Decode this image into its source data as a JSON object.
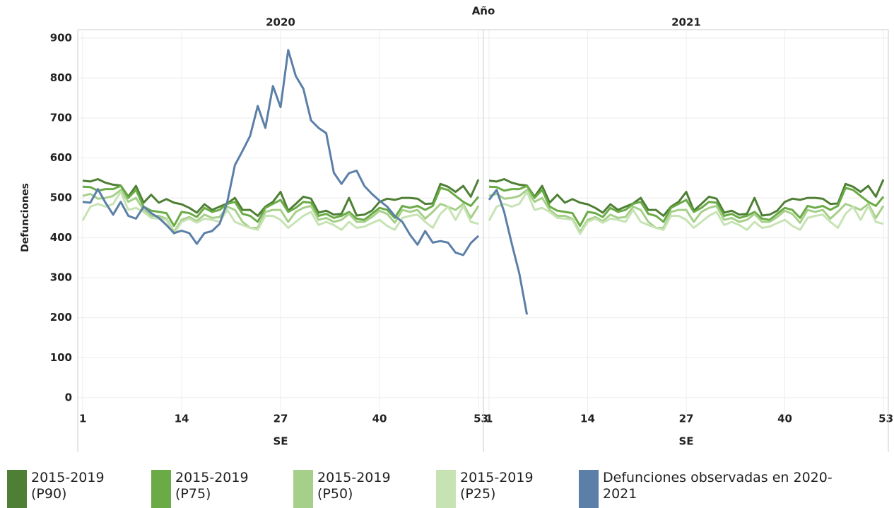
{
  "facet_label": "Año",
  "y_label": "Defunciones",
  "chart_data": [
    {
      "type": "line",
      "title": "2020",
      "x_label": "SE",
      "x": [
        1,
        2,
        3,
        4,
        5,
        6,
        7,
        8,
        9,
        10,
        11,
        12,
        13,
        14,
        15,
        16,
        17,
        18,
        19,
        20,
        21,
        22,
        23,
        24,
        25,
        26,
        27,
        28,
        29,
        30,
        31,
        32,
        33,
        34,
        35,
        36,
        37,
        38,
        39,
        40,
        41,
        42,
        43,
        44,
        45,
        46,
        47,
        48,
        49,
        50,
        51,
        52,
        53
      ],
      "xlim": [
        0.35,
        53.65
      ],
      "xticks": [
        1,
        14,
        27,
        40,
        53
      ],
      "ylim": [
        -48,
        921
      ],
      "yticks": [
        0,
        100,
        200,
        300,
        400,
        500,
        600,
        700,
        800,
        900
      ],
      "grid": true,
      "series": [
        {
          "name": "2015-2019 (P90)",
          "color": "#4e7f35",
          "values": [
            543,
            541,
            547,
            538,
            533,
            531,
            503,
            530,
            488,
            508,
            488,
            497,
            488,
            484,
            475,
            463,
            484,
            470,
            478,
            486,
            500,
            470,
            470,
            455,
            478,
            490,
            515,
            468,
            485,
            503,
            498,
            463,
            468,
            458,
            460,
            500,
            456,
            458,
            468,
            490,
            498,
            495,
            500,
            500,
            498,
            485,
            486,
            535,
            528,
            515,
            530,
            503,
            546
          ]
        },
        {
          "name": "2015-2019 (P75)",
          "color": "#6aab46",
          "values": [
            528,
            527,
            518,
            522,
            522,
            530,
            500,
            520,
            478,
            468,
            465,
            462,
            430,
            465,
            462,
            452,
            475,
            465,
            470,
            485,
            490,
            460,
            455,
            440,
            475,
            485,
            495,
            465,
            475,
            490,
            488,
            455,
            460,
            450,
            455,
            465,
            448,
            445,
            460,
            475,
            470,
            450,
            480,
            475,
            480,
            470,
            480,
            525,
            520,
            505,
            490,
            480,
            503
          ]
        },
        {
          "name": "2015-2019 (P50)",
          "color": "#a6d08a",
          "values": [
            505,
            510,
            498,
            500,
            505,
            520,
            490,
            500,
            470,
            455,
            455,
            448,
            415,
            445,
            452,
            442,
            458,
            450,
            452,
            478,
            470,
            440,
            425,
            425,
            465,
            470,
            470,
            440,
            465,
            475,
            480,
            445,
            450,
            440,
            445,
            460,
            440,
            440,
            452,
            468,
            460,
            438,
            470,
            465,
            470,
            448,
            465,
            485,
            478,
            470,
            485,
            450,
            480
          ]
        },
        {
          "name": "2015-2019 (P25)",
          "color": "#c7e3b4",
          "values": [
            443,
            478,
            485,
            478,
            485,
            515,
            470,
            475,
            465,
            450,
            448,
            445,
            410,
            440,
            448,
            438,
            448,
            445,
            440,
            470,
            440,
            432,
            425,
            420,
            455,
            455,
            445,
            425,
            440,
            455,
            465,
            432,
            440,
            432,
            420,
            440,
            425,
            428,
            437,
            445,
            430,
            420,
            450,
            455,
            458,
            440,
            425,
            460,
            478,
            445,
            480,
            440,
            435
          ]
        },
        {
          "name": "Defunciones observadas en 2020-2021",
          "color": "#5b7fa8",
          "values": [
            490,
            488,
            522,
            488,
            458,
            490,
            455,
            448,
            478,
            462,
            450,
            432,
            412,
            418,
            412,
            385,
            412,
            417,
            435,
            490,
            582,
            618,
            655,
            730,
            675,
            780,
            727,
            870,
            805,
            773,
            694,
            675,
            662,
            563,
            535,
            562,
            568,
            530,
            510,
            493,
            478,
            455,
            440,
            408,
            383,
            417,
            388,
            392,
            388,
            363,
            357,
            387,
            405
          ]
        }
      ]
    },
    {
      "type": "line",
      "title": "2021",
      "x_label": "SE",
      "x": [
        1,
        2,
        3,
        4,
        5,
        6,
        7,
        8,
        9,
        10,
        11,
        12,
        13,
        14,
        15,
        16,
        17,
        18,
        19,
        20,
        21,
        22,
        23,
        24,
        25,
        26,
        27,
        28,
        29,
        30,
        31,
        32,
        33,
        34,
        35,
        36,
        37,
        38,
        39,
        40,
        41,
        42,
        43,
        44,
        45,
        46,
        47,
        48,
        49,
        50,
        51,
        52,
        53
      ],
      "xlim": [
        0.35,
        53.65
      ],
      "xticks": [
        1,
        14,
        27,
        40,
        53
      ],
      "ylim": [
        -48,
        921
      ],
      "yticks": [
        0,
        100,
        200,
        300,
        400,
        500,
        600,
        700,
        800,
        900
      ],
      "grid": true,
      "series": [
        {
          "name": "2015-2019 (P90)",
          "color": "#4e7f35",
          "values": [
            543,
            541,
            547,
            538,
            533,
            531,
            503,
            530,
            488,
            508,
            488,
            497,
            488,
            484,
            475,
            463,
            484,
            470,
            478,
            486,
            500,
            470,
            470,
            455,
            478,
            490,
            515,
            468,
            485,
            503,
            498,
            463,
            468,
            458,
            460,
            500,
            456,
            458,
            468,
            490,
            498,
            495,
            500,
            500,
            498,
            485,
            486,
            535,
            528,
            515,
            530,
            503,
            546
          ]
        },
        {
          "name": "2015-2019 (P75)",
          "color": "#6aab46",
          "values": [
            528,
            527,
            518,
            522,
            522,
            530,
            500,
            520,
            478,
            468,
            465,
            462,
            430,
            465,
            462,
            452,
            475,
            465,
            470,
            485,
            490,
            460,
            455,
            440,
            475,
            485,
            495,
            465,
            475,
            490,
            488,
            455,
            460,
            450,
            455,
            465,
            448,
            445,
            460,
            475,
            470,
            450,
            480,
            475,
            480,
            470,
            480,
            525,
            520,
            505,
            490,
            480,
            503
          ]
        },
        {
          "name": "2015-2019 (P50)",
          "color": "#a6d08a",
          "values": [
            505,
            510,
            498,
            500,
            505,
            520,
            490,
            500,
            470,
            455,
            455,
            448,
            415,
            445,
            452,
            442,
            458,
            450,
            452,
            478,
            470,
            440,
            425,
            425,
            465,
            470,
            470,
            440,
            465,
            475,
            480,
            445,
            450,
            440,
            445,
            460,
            440,
            440,
            452,
            468,
            460,
            438,
            470,
            465,
            470,
            448,
            465,
            485,
            478,
            470,
            485,
            450,
            480
          ]
        },
        {
          "name": "2015-2019 (P25)",
          "color": "#c7e3b4",
          "values": [
            443,
            478,
            485,
            478,
            485,
            515,
            470,
            475,
            465,
            450,
            448,
            445,
            410,
            440,
            448,
            438,
            448,
            445,
            440,
            470,
            440,
            432,
            425,
            420,
            455,
            455,
            445,
            425,
            440,
            455,
            465,
            432,
            440,
            432,
            420,
            440,
            425,
            428,
            437,
            445,
            430,
            420,
            450,
            455,
            458,
            440,
            425,
            460,
            478,
            445,
            480,
            440,
            435
          ]
        },
        {
          "name": "Defunciones observadas en 2020-2021",
          "color": "#5b7fa8",
          "values": [
            495,
            520,
            465,
            385,
            310,
            208,
            null,
            null,
            null,
            null,
            null,
            null,
            null,
            null,
            null,
            null,
            null,
            null,
            null,
            null,
            null,
            null,
            null,
            null,
            null,
            null,
            null,
            null,
            null,
            null,
            null,
            null,
            null,
            null,
            null,
            null,
            null,
            null,
            null,
            null,
            null,
            null,
            null,
            null,
            null,
            null,
            null,
            null,
            null,
            null,
            null,
            null,
            null
          ]
        }
      ]
    }
  ]
}
